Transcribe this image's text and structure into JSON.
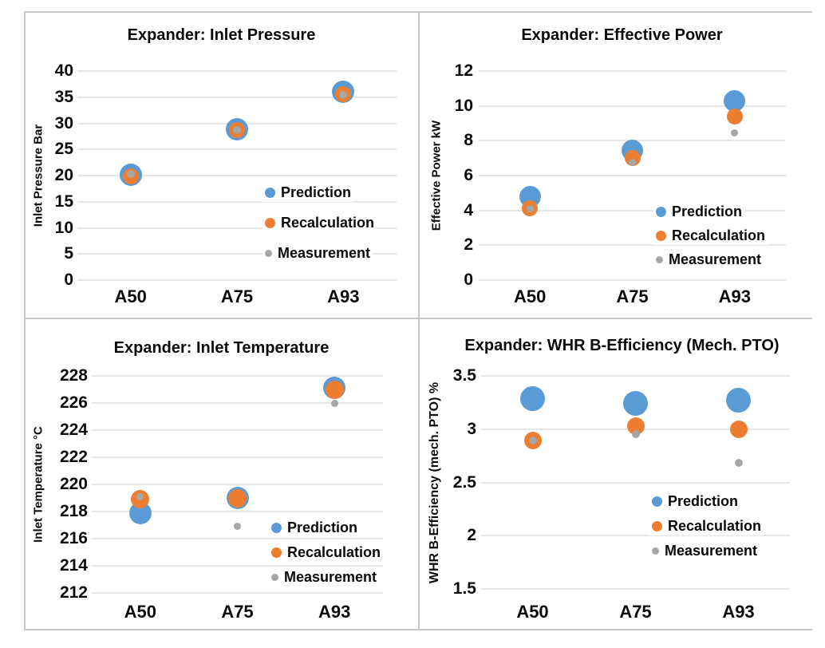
{
  "page": {
    "background": "#ffffff"
  },
  "colors": {
    "prediction": "#5B9BD5",
    "recalculation": "#ED7D31",
    "measurement": "#A6A6A6",
    "gridline": "#E6E6E6",
    "frame": "#C8C8C8",
    "text": "#0A0A0A"
  },
  "legend": {
    "position": "lower-right",
    "items": [
      {
        "label": "Prediction",
        "color_key": "prediction"
      },
      {
        "label": "Recalculation",
        "color_key": "recalculation"
      },
      {
        "label": "Measurement",
        "color_key": "measurement"
      }
    ]
  },
  "chart_data": [
    {
      "type": "scatter",
      "title": "Expander: Inlet Pressure",
      "ylabel": "Inlet Pressure Bar",
      "xlabel": "",
      "categories": [
        "A50",
        "A75",
        "A93"
      ],
      "ylim": [
        0,
        40
      ],
      "yticks": [
        40,
        35,
        30,
        25,
        20,
        15,
        10,
        5,
        0
      ],
      "ytick_labels": [
        "40",
        "35",
        "30",
        "25",
        "20",
        "15",
        "10",
        "5",
        "0"
      ],
      "grid": true,
      "legend_position": "lower-right",
      "series": [
        {
          "name": "Prediction",
          "color_key": "prediction",
          "values": [
            20.1,
            28.8,
            36.0
          ]
        },
        {
          "name": "Recalculation",
          "color_key": "recalculation",
          "values": [
            19.9,
            28.75,
            35.5
          ]
        },
        {
          "name": "Measurement",
          "color_key": "measurement",
          "values": [
            20.3,
            28.7,
            35.4
          ]
        }
      ]
    },
    {
      "type": "scatter",
      "title": "Expander: Effective Power",
      "ylabel": "Effective Power kW",
      "xlabel": "",
      "categories": [
        "A50",
        "A75",
        "A93"
      ],
      "ylim": [
        0,
        12
      ],
      "yticks": [
        12,
        10,
        8,
        6,
        4,
        2,
        0
      ],
      "ytick_labels": [
        "12",
        "10",
        "8",
        "6",
        "4",
        "2",
        "0"
      ],
      "grid": true,
      "legend_position": "lower-right",
      "series": [
        {
          "name": "Prediction",
          "color_key": "prediction",
          "values": [
            4.8,
            7.45,
            10.3
          ]
        },
        {
          "name": "Recalculation",
          "color_key": "recalculation",
          "values": [
            4.1,
            7.0,
            9.4
          ]
        },
        {
          "name": "Measurement",
          "color_key": "measurement",
          "values": [
            4.1,
            6.75,
            8.45
          ]
        }
      ]
    },
    {
      "type": "scatter",
      "title": "Expander: Inlet Temperature",
      "ylabel": "Inlet Temperature °C",
      "xlabel": "",
      "categories": [
        "A50",
        "A75",
        "A93"
      ],
      "ylim": [
        212,
        228
      ],
      "yticks": [
        228,
        226,
        224,
        222,
        220,
        218,
        216,
        214,
        212
      ],
      "ytick_labels": [
        "228",
        "226",
        "224",
        "222",
        "220",
        "218",
        "216",
        "214",
        "212"
      ],
      "grid": true,
      "legend_position": "lower-right",
      "series": [
        {
          "name": "Prediction",
          "color_key": "prediction",
          "values": [
            217.9,
            219.0,
            227.1
          ]
        },
        {
          "name": "Recalculation",
          "color_key": "recalculation",
          "values": [
            218.9,
            219.0,
            227.0
          ]
        },
        {
          "name": "Measurement",
          "color_key": "measurement",
          "values": [
            219.1,
            216.9,
            226.0
          ]
        }
      ]
    },
    {
      "type": "scatter",
      "title": "Expander: WHR B-Efficiency (Mech. PTO)",
      "ylabel": "WHR B-Efficiency (mech. PTO) %",
      "xlabel": "",
      "categories": [
        "A50",
        "A75",
        "A93"
      ],
      "ylim": [
        1.5,
        3.5
      ],
      "yticks": [
        3.5,
        3.0,
        2.5,
        2.0,
        1.5
      ],
      "ytick_labels": [
        "3.5",
        "3",
        "2.5",
        "2",
        "1.5"
      ],
      "grid": true,
      "legend_position": "lower-right",
      "series": [
        {
          "name": "Prediction",
          "color_key": "prediction",
          "values": [
            3.29,
            3.24,
            3.27
          ]
        },
        {
          "name": "Recalculation",
          "color_key": "recalculation",
          "values": [
            2.89,
            3.03,
            3.0
          ]
        },
        {
          "name": "Measurement",
          "color_key": "measurement",
          "values": [
            2.89,
            2.95,
            2.68
          ]
        }
      ]
    }
  ]
}
